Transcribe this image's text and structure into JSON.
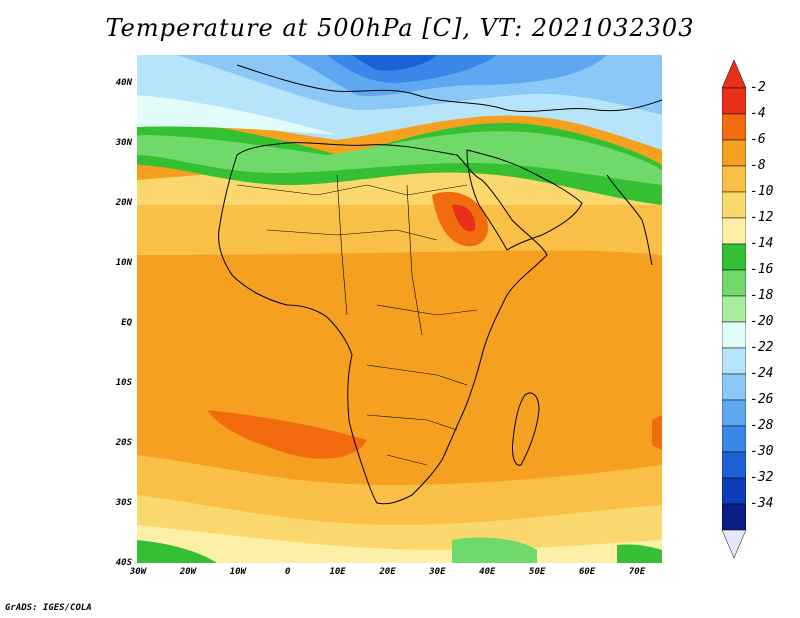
{
  "title": "Temperature at 500hPa [C], VT: 2021032303",
  "footer": "GrADS: IGES/COLA",
  "lat_ticks": [
    "40N",
    "30N",
    "20N",
    "10N",
    "EQ",
    "10S",
    "20S",
    "30S",
    "40S"
  ],
  "lon_ticks": [
    "30W",
    "20W",
    "10W",
    "0",
    "10E",
    "20E",
    "30E",
    "40E",
    "50E",
    "60E",
    "70E"
  ],
  "colorbar": {
    "labels": [
      "-2",
      "-4",
      "-6",
      "-8",
      "-10",
      "-12",
      "-14",
      "-16",
      "-18",
      "-20",
      "-22",
      "-24",
      "-26",
      "-28",
      "-30",
      "-32",
      "-34"
    ],
    "colors": [
      "#e8301a",
      "#f26b0f",
      "#f6a021",
      "#f9bf47",
      "#fbd86e",
      "#fdf0a6",
      "#35c033",
      "#6fd96a",
      "#a7ef9f",
      "#e2fcfa",
      "#b6e5fb",
      "#8bc8f7",
      "#5fa8f1",
      "#3a86e9",
      "#1c62d6",
      "#0c3db8",
      "#0a1f86"
    ]
  },
  "map_colors": {
    "ocean_warm": "#f6a021",
    "land_warm": "#f9b43a",
    "hot": "#f26b0f",
    "hotter": "#e8301a",
    "yellow": "#fbd86e",
    "pale_yellow": "#fdf0a6",
    "green": "#35c033",
    "light_green": "#6fd96a",
    "pale_green": "#a7ef9f",
    "cyan": "#e2fcfa",
    "light_blue": "#b6e5fb",
    "blue1": "#8bc8f7",
    "blue2": "#5fa8f1",
    "blue3": "#3a86e9",
    "blue4": "#1c62d6",
    "coast": "#000000"
  }
}
